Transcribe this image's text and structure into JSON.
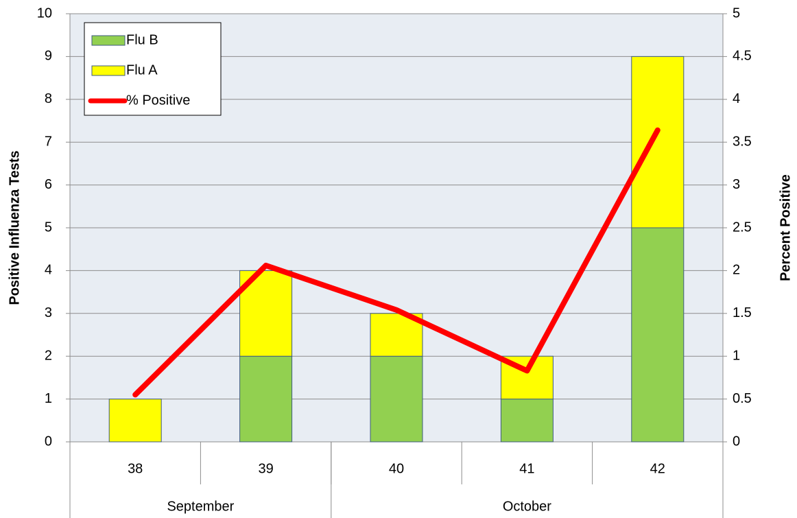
{
  "chart_data": {
    "type": "bar",
    "categories": [
      "38",
      "39",
      "40",
      "41",
      "42"
    ],
    "x_groups": [
      {
        "label": "September",
        "size": 2
      },
      {
        "label": "October",
        "size": 3
      }
    ],
    "y_label": "Positive Influenza Tests",
    "y2_label": "Percent Positive",
    "series": [
      {
        "name": "Flu B",
        "type": "bar",
        "color": "#92d050",
        "values": [
          0,
          2,
          2,
          1,
          5
        ]
      },
      {
        "name": "Flu A",
        "type": "bar",
        "color": "#ffff00",
        "values": [
          1,
          2,
          1,
          1,
          4
        ]
      },
      {
        "name": "% Positive",
        "type": "line",
        "axis": "y2",
        "color": "#ff0000",
        "values": [
          0.55,
          2.06,
          1.54,
          0.83,
          3.64
        ]
      }
    ],
    "stacked": true,
    "ylim": [
      0,
      10
    ],
    "yticks": [
      0,
      1,
      2,
      3,
      4,
      5,
      6,
      7,
      8,
      9,
      10
    ],
    "y2lim": [
      0,
      5
    ],
    "y2ticks": [
      0,
      0.5,
      1,
      1.5,
      2,
      2.5,
      3,
      3.5,
      4,
      4.5,
      5
    ],
    "grid": true,
    "legend": "upper-left"
  }
}
